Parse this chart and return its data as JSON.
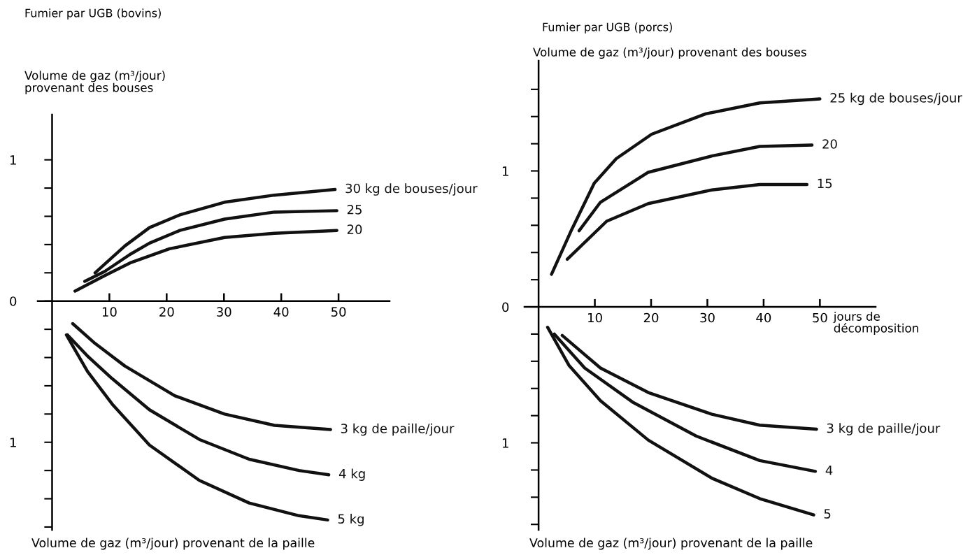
{
  "chart_data": [
    {
      "type": "line",
      "title": "Fumier par UGB (bovins)",
      "ylabel": "Volume de gaz (m³/jour)\nprovenant des bouses",
      "annotations": [
        "Volume de gaz (m³/jour) provenant de la paille"
      ],
      "xlim": [
        -2.5,
        58.9
      ],
      "ylim": [
        -1.62,
        1.32
      ],
      "xticks": [
        10,
        20,
        30,
        40,
        50
      ],
      "yticks": [
        {
          "value": -1.6,
          "label": null
        },
        {
          "value": -1.4,
          "label": null
        },
        {
          "value": -1.2,
          "label": null
        },
        {
          "value": -1,
          "label": "1"
        },
        {
          "value": -0.8,
          "label": null
        },
        {
          "value": -0.6,
          "label": null
        },
        {
          "value": -0.4,
          "label": null
        },
        {
          "value": -0.2,
          "label": null
        },
        0,
        {
          "value": 0.2,
          "label": null
        },
        {
          "value": 0.4,
          "label": null
        },
        {
          "value": 0.6,
          "label": null
        },
        {
          "value": 0.8,
          "label": null
        },
        {
          "value": 1,
          "label": "1"
        }
      ],
      "grid": false,
      "legend": false,
      "line_style": "solid",
      "marker": "none",
      "series": [
        {
          "name": "30 kg de bouses/jour",
          "color": "#111111",
          "x": [
            7.5,
            12.7,
            17.0,
            22.3,
            30.1,
            38.8,
            49.4
          ],
          "values": [
            0.2,
            0.39,
            0.52,
            0.61,
            0.7,
            0.75,
            0.79
          ]
        },
        {
          "name": "25",
          "color": "#111111",
          "x": [
            5.7,
            9.2,
            13.6,
            17.0,
            22.3,
            30.1,
            38.8,
            49.7
          ],
          "values": [
            0.14,
            0.21,
            0.33,
            0.41,
            0.5,
            0.58,
            0.63,
            0.64
          ]
        },
        {
          "name": "20",
          "color": "#111111",
          "x": [
            4.0,
            9.2,
            13.6,
            20.5,
            30.1,
            38.8,
            49.7
          ],
          "values": [
            0.07,
            0.18,
            0.27,
            0.37,
            0.45,
            0.48,
            0.5
          ]
        },
        {
          "name": "3 kg de paille/jour",
          "color": "#111111",
          "x": [
            3.6,
            7.5,
            12.7,
            21.4,
            30.1,
            38.8,
            48.6
          ],
          "values": [
            -0.16,
            -0.3,
            -0.46,
            -0.67,
            -0.8,
            -0.88,
            -0.91
          ]
        },
        {
          "name": "4 kg",
          "color": "#111111",
          "x": [
            2.7,
            6.2,
            10.5,
            17.0,
            25.7,
            34.4,
            43.1,
            48.3
          ],
          "values": [
            -0.24,
            -0.39,
            -0.55,
            -0.77,
            -0.98,
            -1.12,
            -1.2,
            -1.23
          ]
        },
        {
          "name": "5 kg",
          "color": "#111111",
          "x": [
            2.5,
            6.2,
            10.5,
            17.0,
            25.7,
            34.4,
            43.1,
            48.1
          ],
          "values": [
            -0.24,
            -0.5,
            -0.73,
            -1.02,
            -1.27,
            -1.43,
            -1.52,
            -1.55
          ]
        }
      ]
    },
    {
      "type": "line",
      "title": "Fumier par UGB (porcs)",
      "ylabel": "Volume de gaz (m³/jour) provenant des bouses",
      "xlabel": "jours de\ndécomposition",
      "annotations": [
        "Volume de gaz (m³/jour) provenant de la paille"
      ],
      "xlim": [
        -2.5,
        59.9
      ],
      "ylim": [
        -1.64,
        1.81
      ],
      "xticks": [
        10,
        20,
        30,
        40,
        50
      ],
      "yticks": [
        {
          "value": -1.6,
          "label": null
        },
        {
          "value": -1.4,
          "label": null
        },
        {
          "value": -1.2,
          "label": null
        },
        {
          "value": -1,
          "label": "1"
        },
        {
          "value": -0.8,
          "label": null
        },
        {
          "value": -0.6,
          "label": null
        },
        {
          "value": -0.4,
          "label": null
        },
        {
          "value": -0.2,
          "label": null
        },
        0,
        {
          "value": 0.2,
          "label": null
        },
        {
          "value": 0.4,
          "label": null
        },
        {
          "value": 0.6,
          "label": null
        },
        {
          "value": 0.8,
          "label": null
        },
        {
          "value": 1,
          "label": "1"
        },
        {
          "value": 1.2,
          "label": null
        },
        {
          "value": 1.4,
          "label": null
        },
        {
          "value": 1.6,
          "label": null
        }
      ],
      "grid": false,
      "legend": false,
      "line_style": "solid",
      "marker": "none",
      "series": [
        {
          "name": "25 kg de bouses/jour",
          "color": "#111111",
          "x": [
            2.3,
            5.9,
            9.9,
            13.8,
            20.1,
            29.7,
            39.3,
            50.0
          ],
          "values": [
            0.24,
            0.57,
            0.91,
            1.09,
            1.27,
            1.42,
            1.5,
            1.53
          ]
        },
        {
          "name": "20",
          "color": "#111111",
          "x": [
            7.2,
            11.0,
            19.5,
            30.8,
            39.3,
            48.6
          ],
          "values": [
            0.56,
            0.77,
            0.99,
            1.11,
            1.18,
            1.19
          ]
        },
        {
          "name": "15",
          "color": "#111111",
          "x": [
            5.1,
            12.1,
            19.5,
            30.8,
            39.3,
            47.7
          ],
          "values": [
            0.35,
            0.63,
            0.76,
            0.86,
            0.9,
            0.9
          ]
        },
        {
          "name": "3 kg de paille/jour",
          "color": "#111111",
          "x": [
            4.2,
            11.0,
            19.5,
            30.8,
            39.3,
            49.4
          ],
          "values": [
            -0.21,
            -0.45,
            -0.63,
            -0.79,
            -0.87,
            -0.9
          ]
        },
        {
          "name": "4",
          "color": "#111111",
          "x": [
            2.8,
            8.2,
            16.7,
            28.0,
            39.3,
            49.2
          ],
          "values": [
            -0.2,
            -0.45,
            -0.7,
            -0.95,
            -1.13,
            -1.21
          ]
        },
        {
          "name": "5",
          "color": "#111111",
          "x": [
            1.6,
            5.4,
            11.0,
            19.5,
            30.8,
            39.3,
            48.9
          ],
          "values": [
            -0.15,
            -0.43,
            -0.69,
            -0.98,
            -1.26,
            -1.41,
            -1.53
          ]
        }
      ]
    }
  ]
}
